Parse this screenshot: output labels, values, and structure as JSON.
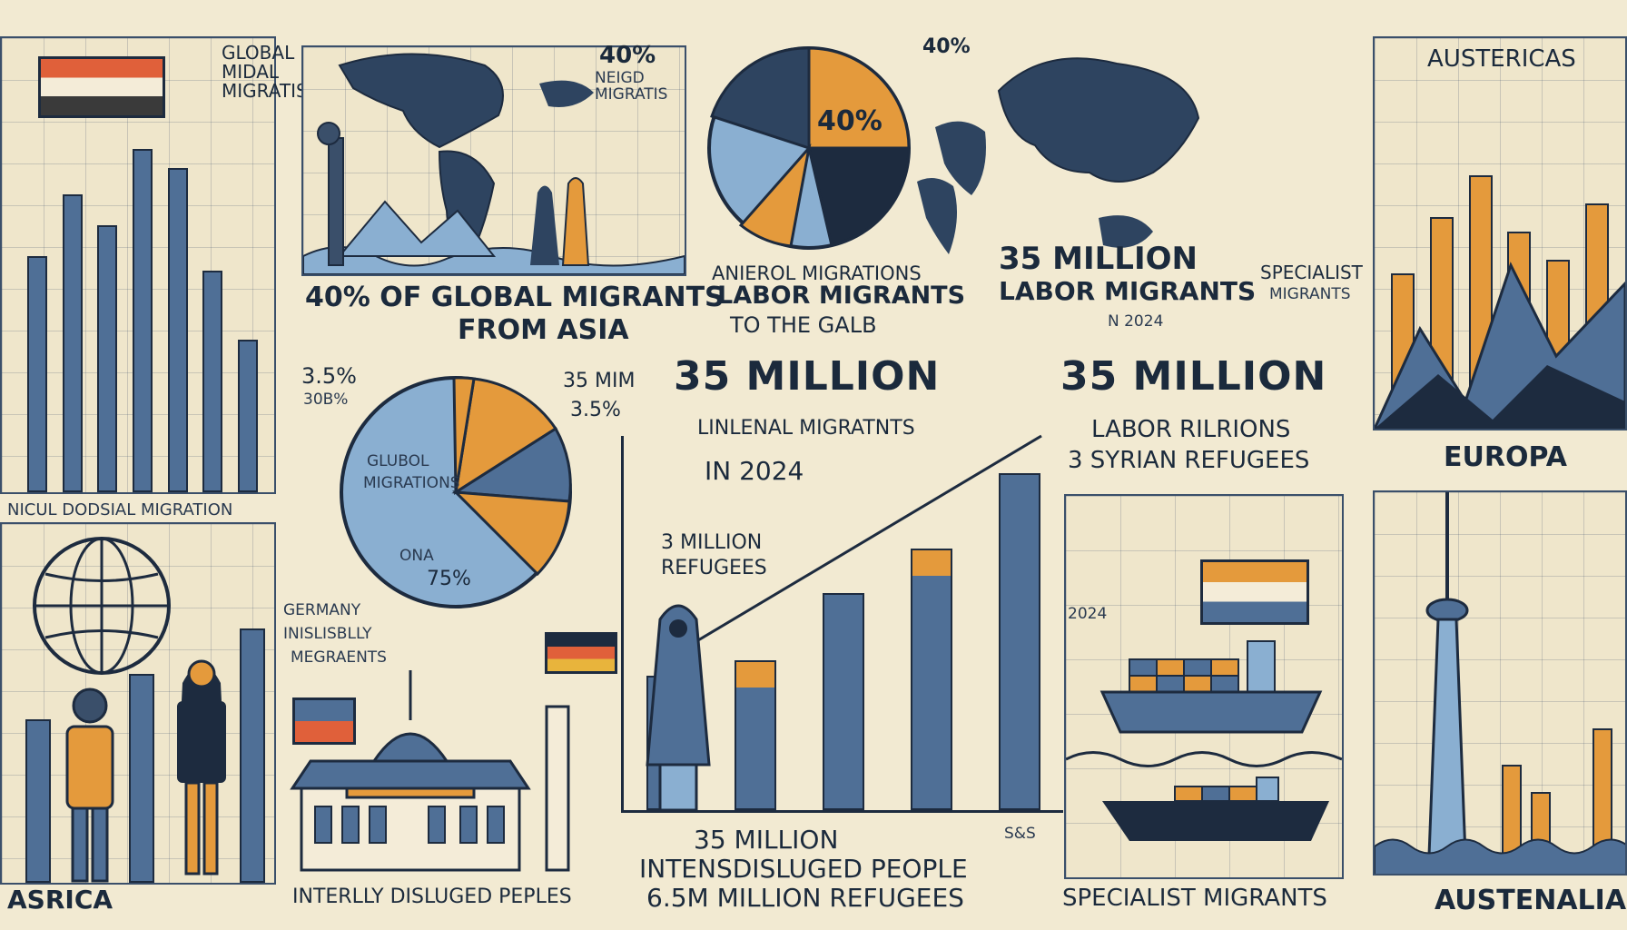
{
  "left_column": {
    "small_label": "GLOBAL MIDAL MIGRATIS",
    "caption": "NICUL DODSIAL MIGRATION",
    "bottom_label": "ASRICA",
    "bar_levels": [
      0.62,
      0.78,
      0.7,
      0.9,
      0.85,
      0.58,
      0.4
    ]
  },
  "top_map": {
    "stat_small": "40%",
    "stat_small_sub": "NEIGD MIGRATIS",
    "headline_1": "40% OF GLOBAL MIGRANTS",
    "headline_2": "FROM ASIA"
  },
  "top_pie": {
    "label_top": "40%",
    "center_label": "40%",
    "caption_1": "ANIEROL MIGRATIONS",
    "caption_2": "LABOR MIGRANTS",
    "caption_3": "TO THE GALB",
    "year_small": "N 2024"
  },
  "top_world": {
    "headline_1": "35 MILLION",
    "headline_2": "LABOR MIGRANTS",
    "side_label_1": "SPECIALIST",
    "side_label_2": "MIGRANTS"
  },
  "right_top_panel": {
    "title": "AUSTERICAS",
    "caption": "EUROPA"
  },
  "right_bottom_panel": {
    "caption": "AUSTENALIA"
  },
  "middle_pie": {
    "label_tl_1": "3.5%",
    "label_tl_2": "30B%",
    "label_tr_1": "35 MIM",
    "label_tr_2": "3.5%",
    "center_label_1": "GLUBOL",
    "center_label_2": "MIGRATIONS",
    "slice_label_1": "ONA",
    "slice_label_2": "75%",
    "side_caption_1": "GERMANY",
    "side_caption_2": "INISLISBLLY",
    "side_caption_3": "MEGRAENTS"
  },
  "center_stats": {
    "headline_a": "35 MILLION",
    "sub_a": "LINLENAL MIGRATNTS",
    "headline_b": "35 MILLION",
    "sub_b_1": "LABOR RILRIONS",
    "sub_b_2": "3 SYRIAN REFUGEES",
    "in_year": "IN 2024",
    "refugees_1": "3 MILLION",
    "refugees_2": "REFUGEES",
    "bottom_1": "35 MILLION",
    "bottom_2": "INTENSDISLUGED PEOPLE",
    "bottom_3": "6.5M MILLION REFUGEES",
    "tiny_mark": "S&S",
    "bar_levels": [
      0.36,
      0.4,
      0.58,
      0.7,
      0.9
    ]
  },
  "bottom_left": {
    "caption": "INTERLLY DISLUGED PEPLES"
  },
  "ship_panel": {
    "year": "2024",
    "caption": "SPECIALIST MIGRANTS"
  },
  "colors": {
    "navy": "#1b2a3c",
    "steel_blue": "#4f6f96",
    "light_blue": "#8aafd1",
    "orange": "#e49a3c",
    "cream": "#f2ead2"
  }
}
